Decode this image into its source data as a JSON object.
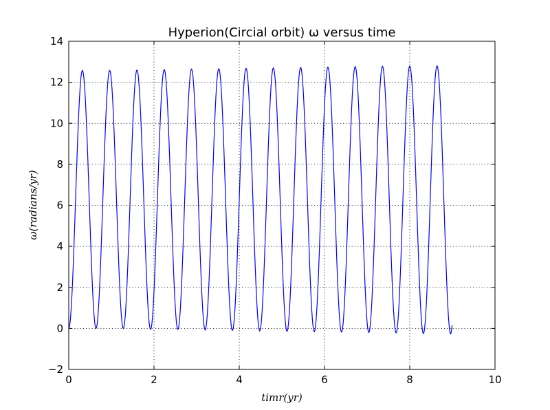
{
  "chart_data": {
    "type": "line",
    "title": "Hyperion(Circial orbit) ω versus time",
    "xlabel": "timr(yr)",
    "ylabel": "ω(radians/yr)",
    "xlim": [
      0,
      10
    ],
    "ylim": [
      -2,
      14
    ],
    "xticks": [
      0,
      2,
      4,
      6,
      8,
      10
    ],
    "yticks": [
      -2,
      0,
      2,
      4,
      6,
      8,
      10,
      12,
      14
    ],
    "xtick_labels": [
      "0",
      "2",
      "4",
      "6",
      "8",
      "10"
    ],
    "ytick_labels": [
      "−2",
      "0",
      "2",
      "4",
      "6",
      "8",
      "10",
      "12",
      "14"
    ],
    "grid": true,
    "series": [
      {
        "color": "#0000ff",
        "x": [
          0,
          0.32,
          0.64,
          0.96,
          1.28,
          1.6,
          1.92,
          2.24,
          2.56,
          2.88,
          3.2,
          3.52,
          3.84,
          4.16,
          4.48,
          4.8,
          5.12,
          5.44,
          5.76,
          6.08,
          6.4,
          6.72,
          7.04,
          7.36,
          7.68,
          8.0,
          8.32,
          8.64,
          8.96,
          9.0
        ],
        "y": [
          0.0,
          12.58,
          0.0,
          12.58,
          0.0,
          12.6,
          -0.05,
          12.62,
          -0.05,
          12.64,
          -0.08,
          12.66,
          -0.1,
          12.68,
          -0.12,
          12.7,
          -0.14,
          12.72,
          -0.16,
          12.74,
          -0.18,
          12.76,
          -0.2,
          12.78,
          -0.22,
          12.79,
          -0.25,
          12.8,
          -0.27,
          0.15
        ]
      }
    ]
  }
}
